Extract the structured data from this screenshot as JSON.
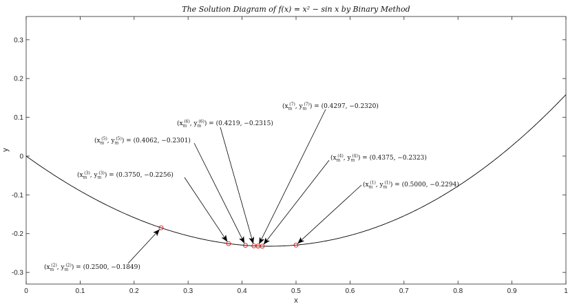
{
  "chart_data": {
    "type": "line",
    "title": "The Solution Diagram of f(x) = x² − sin x by Binary Method",
    "xlabel": "x",
    "ylabel": "y",
    "xlim": [
      0,
      1
    ],
    "ylim": [
      -0.33,
      0.36
    ],
    "x_ticks": [
      0,
      0.1,
      0.2,
      0.3,
      0.4,
      0.5,
      0.6,
      0.7,
      0.8,
      0.9,
      1
    ],
    "x_tick_labels": [
      "0",
      "0.1",
      "0.2",
      "0.3",
      "0.4",
      "0.5",
      "0.6",
      "0.7",
      "0.8",
      "0.9",
      "1"
    ],
    "y_ticks": [
      -0.3,
      -0.2,
      -0.1,
      0,
      0.1,
      0.2,
      0.3
    ],
    "y_tick_labels": [
      "-0.3",
      "-0.2",
      "-0.1",
      "0",
      "0.1",
      "0.2",
      "0.3"
    ],
    "grid": false,
    "curve": {
      "function": "x^2 - sin(x)",
      "color": "#000000"
    },
    "points": [
      {
        "k": 1,
        "x": 0.5,
        "y": -0.2294,
        "label": "(x_m^(1), y_m^(1)) = (0.5000, −0.2294)"
      },
      {
        "k": 2,
        "x": 0.25,
        "y": -0.1849,
        "label": "(x_m^(2), y_m^(2)) = (0.2500, −0.1849)"
      },
      {
        "k": 3,
        "x": 0.375,
        "y": -0.2256,
        "label": "(x_m^(3), y_m^(3)) = (0.3750, −0.2256)"
      },
      {
        "k": 4,
        "x": 0.4375,
        "y": -0.2323,
        "label": "(x_m^(4), y_m^(4)) = (0.4375, −0.2323)"
      },
      {
        "k": 5,
        "x": 0.4062,
        "y": -0.2301,
        "label": "(x_m^(5), y_m^(5)) = (0.4062, −0.2301)"
      },
      {
        "k": 6,
        "x": 0.4219,
        "y": -0.2315,
        "label": "(x_m^(6), y_m^(6)) = (0.4219, −0.2315)"
      },
      {
        "k": 7,
        "x": 0.4297,
        "y": -0.232,
        "label": "(x_m^(7), y_m^(7)) = (0.4297, −0.2320)"
      }
    ],
    "marker_color": "#e01010"
  }
}
